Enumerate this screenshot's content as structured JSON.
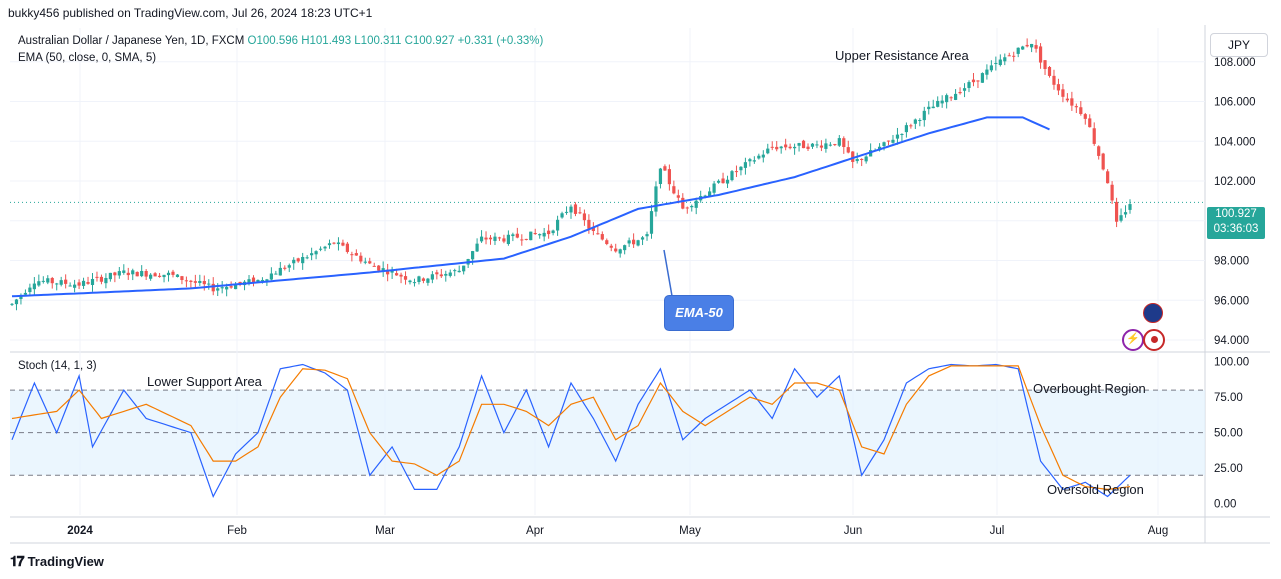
{
  "header": {
    "publisher": "bukky456 published on TradingView.com, Jul 26, 2024 18:23 UTC+1"
  },
  "legend": {
    "symbol": "Australian Dollar / Japanese Yen, 1D, FXCM",
    "ohlc": "O100.596  H101.493  L100.311  C100.927  +0.331 (+0.33%)",
    "ema": "EMA (50, close, 0, SMA, 5)",
    "stoch": "Stoch (14, 1, 3)"
  },
  "currency_button": "JPY",
  "last_price": {
    "price": "100.927",
    "countdown": "03:36:03"
  },
  "annotations": {
    "upper_resistance": "Upper Resistance Area",
    "lower_support": "Lower Support Area",
    "overbought": "Overbought Region",
    "oversold": "Oversold Region",
    "ema_callout": "EMA-50"
  },
  "footer": {
    "brand": "TradingView"
  },
  "colors": {
    "up": "#26a69a",
    "down": "#ef5350",
    "ema": "#2962ff",
    "stoch_k": "#2962ff",
    "stoch_d": "#f57c00",
    "band": "#e3f2fd"
  },
  "chart_data": [
    {
      "type": "candlestick",
      "title": "Australian Dollar / Japanese Yen, 1D, FXCM",
      "y_ticks": [
        "108.000",
        "106.000",
        "104.000",
        "102.000",
        "100.000",
        "98.000",
        "96.000",
        "94.000"
      ],
      "ylim": [
        93.5,
        109.7
      ],
      "x_ticks": [
        "2024",
        "Feb",
        "Mar",
        "Apr",
        "May",
        "Jun",
        "Jul",
        "Aug"
      ],
      "series": [
        {
          "name": "EMA (50, close, 0, SMA, 5)",
          "keypoints": [
            [
              0,
              96.2
            ],
            [
              40,
              96.6
            ],
            [
              80,
              97.4
            ],
            [
              110,
              98.1
            ],
            [
              125,
              99.2
            ],
            [
              140,
              100.6
            ],
            [
              158,
              101.3
            ],
            [
              175,
              102.2
            ],
            [
              190,
              103.3
            ],
            [
              205,
              104.4
            ],
            [
              218,
              105.2
            ],
            [
              226,
              105.2
            ],
            [
              232,
              104.6
            ]
          ]
        }
      ],
      "price_keypoints": [
        [
          0,
          95.8
        ],
        [
          5,
          97.0
        ],
        [
          15,
          96.8
        ],
        [
          25,
          97.4
        ],
        [
          35,
          97.3
        ],
        [
          45,
          96.6
        ],
        [
          55,
          97.0
        ],
        [
          65,
          98.1
        ],
        [
          72,
          98.9
        ],
        [
          80,
          97.8
        ],
        [
          90,
          97.0
        ],
        [
          100,
          97.5
        ],
        [
          105,
          99.1
        ],
        [
          110,
          99.1
        ],
        [
          120,
          99.4
        ],
        [
          125,
          100.8
        ],
        [
          130,
          99.4
        ],
        [
          135,
          98.6
        ],
        [
          142,
          99.2
        ],
        [
          145,
          102.8
        ],
        [
          150,
          100.6
        ],
        [
          160,
          102.2
        ],
        [
          170,
          103.7
        ],
        [
          180,
          103.8
        ],
        [
          185,
          104.0
        ],
        [
          188,
          102.9
        ],
        [
          195,
          103.8
        ],
        [
          205,
          105.6
        ],
        [
          215,
          107.0
        ],
        [
          222,
          108.2
        ],
        [
          228,
          109.0
        ],
        [
          232,
          107.2
        ],
        [
          236,
          106.1
        ],
        [
          240,
          105.3
        ],
        [
          245,
          102.0
        ],
        [
          247,
          99.8
        ],
        [
          250,
          100.9
        ]
      ],
      "last_price": 100.927
    },
    {
      "type": "line",
      "title": "Stoch (14, 1, 3)",
      "y_ticks": [
        "100.00",
        "75.00",
        "50.00",
        "25.00",
        "0.00"
      ],
      "ylim": [
        -8,
        104
      ],
      "bands": [
        20,
        50,
        80
      ],
      "series": [
        {
          "name": "%K",
          "keypoints": [
            [
              0,
              45
            ],
            [
              5,
              85
            ],
            [
              10,
              50
            ],
            [
              15,
              90
            ],
            [
              18,
              40
            ],
            [
              25,
              80
            ],
            [
              30,
              60
            ],
            [
              40,
              50
            ],
            [
              45,
              5
            ],
            [
              50,
              35
            ],
            [
              55,
              50
            ],
            [
              60,
              95
            ],
            [
              65,
              98
            ],
            [
              70,
              92
            ],
            [
              75,
              80
            ],
            [
              80,
              20
            ],
            [
              85,
              40
            ],
            [
              90,
              10
            ],
            [
              95,
              10
            ],
            [
              100,
              40
            ],
            [
              105,
              90
            ],
            [
              110,
              50
            ],
            [
              115,
              80
            ],
            [
              120,
              40
            ],
            [
              125,
              85
            ],
            [
              130,
              60
            ],
            [
              135,
              30
            ],
            [
              140,
              70
            ],
            [
              145,
              95
            ],
            [
              150,
              45
            ],
            [
              155,
              60
            ],
            [
              160,
              70
            ],
            [
              165,
              80
            ],
            [
              170,
              60
            ],
            [
              175,
              95
            ],
            [
              180,
              75
            ],
            [
              185,
              90
            ],
            [
              190,
              20
            ],
            [
              195,
              45
            ],
            [
              200,
              85
            ],
            [
              205,
              95
            ],
            [
              210,
              98
            ],
            [
              215,
              97
            ],
            [
              220,
              98
            ],
            [
              225,
              95
            ],
            [
              230,
              30
            ],
            [
              235,
              10
            ],
            [
              240,
              15
            ],
            [
              245,
              5
            ],
            [
              250,
              20
            ]
          ]
        },
        {
          "name": "%D",
          "keypoints": [
            [
              0,
              60
            ],
            [
              10,
              65
            ],
            [
              15,
              80
            ],
            [
              20,
              60
            ],
            [
              30,
              70
            ],
            [
              40,
              55
            ],
            [
              45,
              30
            ],
            [
              50,
              30
            ],
            [
              55,
              40
            ],
            [
              60,
              75
            ],
            [
              65,
              95
            ],
            [
              70,
              94
            ],
            [
              75,
              88
            ],
            [
              80,
              50
            ],
            [
              85,
              30
            ],
            [
              90,
              28
            ],
            [
              95,
              20
            ],
            [
              100,
              30
            ],
            [
              105,
              70
            ],
            [
              110,
              70
            ],
            [
              115,
              65
            ],
            [
              120,
              55
            ],
            [
              125,
              70
            ],
            [
              130,
              75
            ],
            [
              135,
              45
            ],
            [
              140,
              55
            ],
            [
              145,
              85
            ],
            [
              150,
              65
            ],
            [
              155,
              55
            ],
            [
              160,
              65
            ],
            [
              165,
              75
            ],
            [
              170,
              70
            ],
            [
              175,
              85
            ],
            [
              180,
              85
            ],
            [
              185,
              80
            ],
            [
              190,
              40
            ],
            [
              195,
              35
            ],
            [
              200,
              70
            ],
            [
              205,
              90
            ],
            [
              210,
              97
            ],
            [
              215,
              97
            ],
            [
              220,
              97
            ],
            [
              225,
              97
            ],
            [
              230,
              55
            ],
            [
              235,
              20
            ],
            [
              240,
              12
            ],
            [
              245,
              10
            ],
            [
              250,
              12
            ]
          ]
        }
      ]
    }
  ]
}
